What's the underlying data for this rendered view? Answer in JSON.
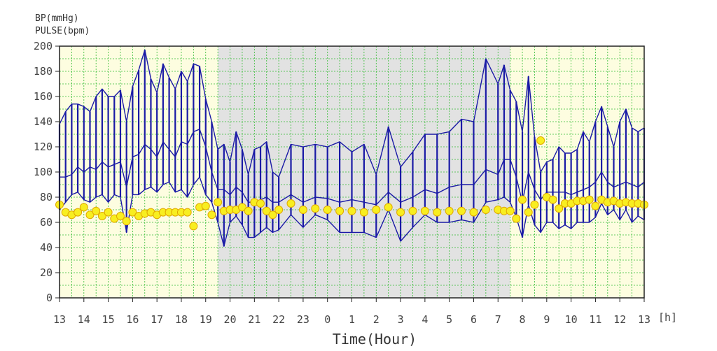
{
  "chart_data": {
    "type": "line",
    "ylabel_lines": [
      "BP(mmHg)",
      "PULSE(bpm)"
    ],
    "xlabel": "Time(Hour)",
    "x_unit": "[h]",
    "ylim": [
      0,
      200
    ],
    "y_ticks": [
      0,
      20,
      40,
      60,
      80,
      100,
      120,
      140,
      160,
      180,
      200
    ],
    "x_range_hours": [
      0,
      24
    ],
    "x_tick_labels": [
      "13",
      "14",
      "15",
      "16",
      "17",
      "18",
      "19",
      "20",
      "21",
      "22",
      "23",
      "0",
      "1",
      "2",
      "3",
      "4",
      "5",
      "6",
      "7",
      "8",
      "9",
      "10",
      "11",
      "12",
      "13"
    ],
    "night_shading": [
      6.5,
      18.5
    ],
    "grid": true,
    "colors": {
      "bp": "#1a1aa6",
      "pulse_fill": "#f8ee20",
      "pulse_stroke": "#e0a800",
      "day_bg": "#fdfde0",
      "night_bg": "#e2e2e2",
      "grid": "#33bb33"
    },
    "x": [
      0,
      0.25,
      0.5,
      0.75,
      1,
      1.25,
      1.5,
      1.75,
      2,
      2.25,
      2.5,
      2.75,
      3,
      3.25,
      3.5,
      3.75,
      4,
      4.25,
      4.5,
      4.75,
      5,
      5.25,
      5.5,
      5.75,
      6,
      6.25,
      6.5,
      6.75,
      7,
      7.25,
      7.5,
      7.75,
      8,
      8.25,
      8.5,
      8.75,
      9,
      9.5,
      10,
      10.5,
      11,
      11.5,
      12,
      12.5,
      13,
      13.5,
      14,
      14.5,
      15,
      15.5,
      16,
      16.5,
      17,
      17.5,
      18,
      18.25,
      18.5,
      18.75,
      19,
      19.25,
      19.5,
      19.75,
      20,
      20.25,
      20.5,
      20.75,
      21,
      21.25,
      21.5,
      21.75,
      22,
      22.25,
      22.5,
      22.75,
      23,
      23.25,
      23.5,
      23.75,
      24
    ],
    "series": [
      {
        "name": "SYS",
        "values": [
          138,
          148,
          154,
          154,
          152,
          148,
          160,
          166,
          160,
          160,
          165,
          140,
          168,
          181,
          197,
          174,
          163,
          186,
          175,
          166,
          180,
          172,
          186,
          184,
          158,
          140,
          118,
          122,
          108,
          132,
          118,
          98,
          118,
          120,
          124,
          100,
          96,
          122,
          120,
          122,
          120,
          124,
          116,
          122,
          98,
          136,
          104,
          116,
          130,
          130,
          132,
          142,
          140,
          190,
          170,
          185,
          165,
          156,
          132,
          176,
          128,
          100,
          108,
          110,
          120,
          115,
          115,
          118,
          132,
          124,
          140,
          152,
          136,
          120,
          140,
          150,
          135,
          132,
          135
        ]
      },
      {
        "name": "DIA",
        "values": [
          70,
          76,
          82,
          84,
          78,
          76,
          80,
          82,
          76,
          82,
          80,
          52,
          82,
          82,
          86,
          88,
          84,
          90,
          92,
          84,
          86,
          80,
          90,
          96,
          82,
          76,
          60,
          41,
          60,
          65,
          58,
          48,
          48,
          52,
          56,
          52,
          54,
          66,
          56,
          66,
          62,
          52,
          52,
          52,
          48,
          70,
          45,
          56,
          66,
          60,
          60,
          62,
          60,
          76,
          78,
          80,
          76,
          64,
          48,
          74,
          58,
          52,
          60,
          60,
          55,
          58,
          55,
          60,
          60,
          60,
          64,
          75,
          66,
          70,
          62,
          70,
          60,
          65,
          62
        ]
      },
      {
        "name": "MAP",
        "values": [
          96,
          96,
          98,
          104,
          100,
          104,
          102,
          108,
          104,
          106,
          108,
          88,
          112,
          114,
          122,
          118,
          112,
          124,
          118,
          112,
          124,
          122,
          132,
          134,
          120,
          100,
          86,
          86,
          82,
          88,
          84,
          76,
          76,
          78,
          80,
          76,
          76,
          82,
          76,
          80,
          79,
          76,
          78,
          76,
          74,
          84,
          76,
          80,
          86,
          83,
          88,
          90,
          90,
          102,
          98,
          110,
          110,
          96,
          76,
          100,
          86,
          78,
          84,
          84,
          84,
          84,
          82,
          84,
          86,
          88,
          92,
          100,
          92,
          88,
          90,
          92,
          90,
          88,
          92
        ]
      },
      {
        "name": "PULSE",
        "values": [
          74,
          68,
          66,
          68,
          72,
          66,
          69,
          65,
          68,
          63,
          65,
          61,
          68,
          65,
          67,
          68,
          66,
          68,
          68,
          68,
          68,
          68,
          57,
          72,
          73,
          66,
          76,
          69,
          70,
          70,
          72,
          69,
          76,
          75,
          69,
          66,
          70,
          75,
          70,
          71,
          70,
          69,
          69,
          68,
          70,
          72,
          68,
          69,
          69,
          68,
          69,
          69,
          68,
          70,
          70,
          69,
          69,
          63,
          78,
          68,
          74,
          125,
          80,
          78,
          71,
          75,
          75,
          77,
          77,
          78,
          73,
          78,
          76,
          77,
          75,
          76,
          75,
          75,
          74
        ]
      }
    ]
  }
}
